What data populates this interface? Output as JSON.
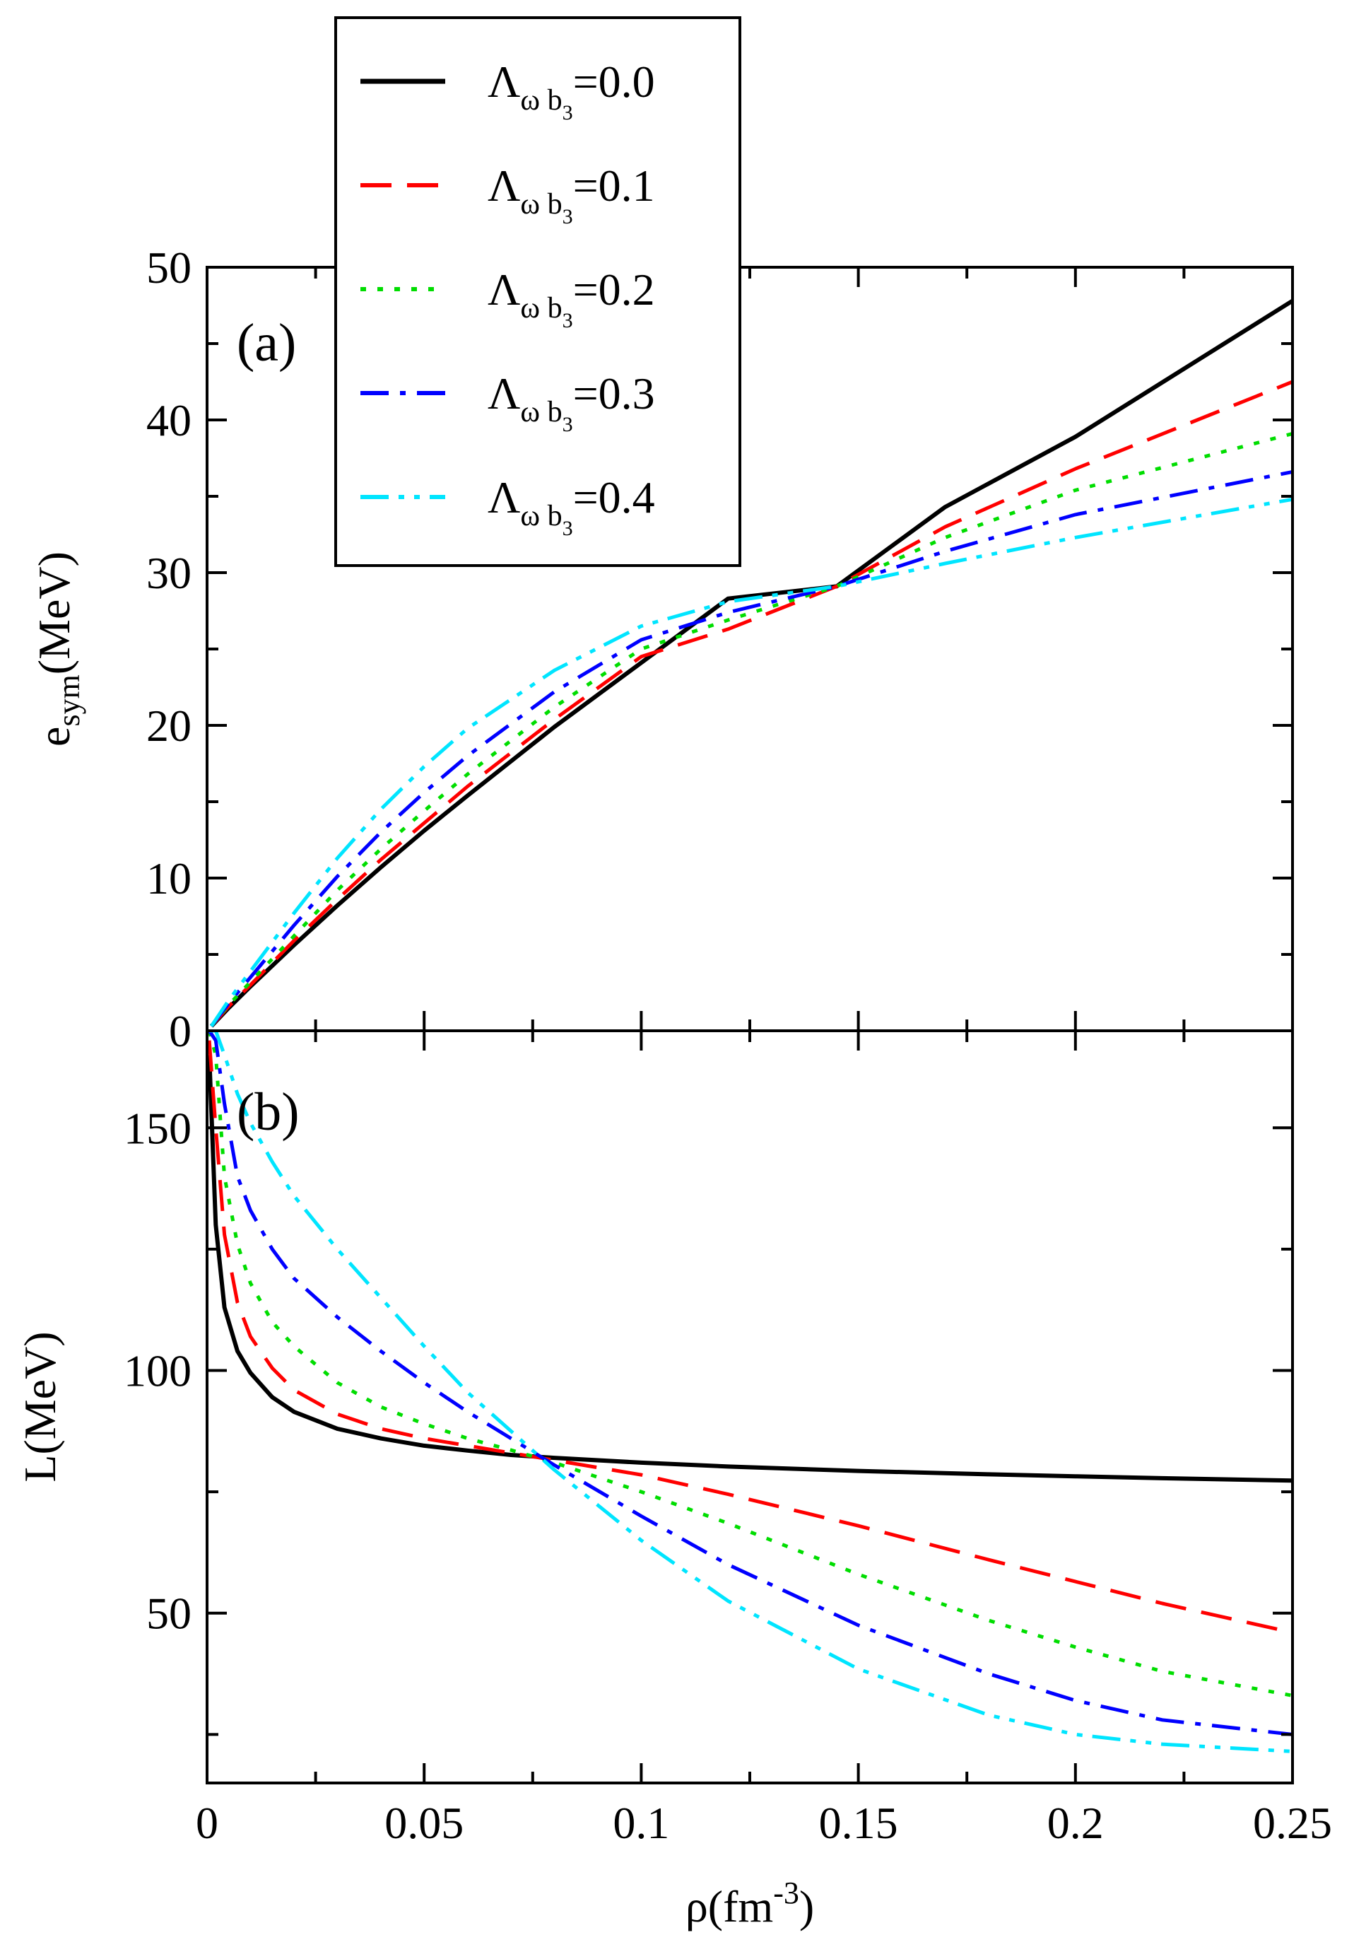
{
  "chart_data": [
    {
      "type": "line",
      "panel_label": "(a)",
      "ylabel_main": "e",
      "ylabel_sub": "sym",
      "ylabel_unit": "(MeV)",
      "xlim": [
        0,
        0.25
      ],
      "ylim": [
        0,
        50
      ],
      "yticks": [
        0,
        10,
        20,
        30,
        40,
        50
      ],
      "ytick_labels": [
        "0",
        "10",
        "20",
        "30",
        "40",
        "50"
      ],
      "x": [
        0.001,
        0.005,
        0.01,
        0.02,
        0.03,
        0.04,
        0.05,
        0.06,
        0.08,
        0.1,
        0.12,
        0.145,
        0.17,
        0.2,
        0.25
      ],
      "series": [
        {
          "name": "Λωb3=0.0",
          "color": "#000000",
          "dash": "solid",
          "values": [
            0.3,
            1.5,
            2.9,
            5.6,
            8.2,
            10.7,
            13.1,
            15.4,
            19.9,
            24.1,
            28.3,
            29.1,
            34.3,
            38.9,
            47.8
          ]
        },
        {
          "name": "Λωb3=0.1",
          "color": "#ff0000",
          "dash": "dashed",
          "values": [
            0.3,
            1.6,
            3.0,
            5.9,
            8.6,
            11.2,
            13.6,
            16.0,
            20.4,
            24.5,
            26.3,
            29.1,
            33.0,
            36.8,
            42.5
          ]
        },
        {
          "name": "Λωb3=0.2",
          "color": "#00dd00",
          "dash": "dotted",
          "values": [
            0.3,
            1.7,
            3.2,
            6.2,
            9.2,
            11.9,
            14.4,
            16.8,
            21.2,
            25.0,
            26.9,
            29.1,
            32.3,
            35.4,
            39.1
          ]
        },
        {
          "name": "Λωb3=0.3",
          "color": "#0000ff",
          "dash": "dashdot",
          "values": [
            0.3,
            1.8,
            3.5,
            6.9,
            10.1,
            13.0,
            15.6,
            18.0,
            22.2,
            25.6,
            27.4,
            29.1,
            31.4,
            33.8,
            36.6
          ]
        },
        {
          "name": "Λωb3=0.4",
          "color": "#00e5ff",
          "dash": "dashdotdot",
          "values": [
            0.3,
            2.0,
            3.9,
            7.7,
            11.3,
            14.5,
            17.3,
            19.8,
            23.6,
            26.5,
            28.1,
            29.1,
            30.6,
            32.3,
            34.8
          ]
        }
      ]
    },
    {
      "type": "line",
      "panel_label": "(b)",
      "ylabel": "L(MeV)",
      "xlabel_main": "ρ(fm",
      "xlabel_sup": "-3",
      "xlabel_close": ")",
      "xlim": [
        0,
        0.25
      ],
      "ylim": [
        15,
        170
      ],
      "yticks": [
        50,
        100,
        150
      ],
      "ytick_labels": [
        "50",
        "100",
        "150"
      ],
      "xticks": [
        0,
        0.05,
        0.1,
        0.15,
        0.2,
        0.25
      ],
      "xtick_labels": [
        "0",
        "0.05",
        "0.1",
        "0.15",
        "0.2",
        "0.25"
      ],
      "x": [
        0.0005,
        0.002,
        0.004,
        0.007,
        0.01,
        0.015,
        0.02,
        0.03,
        0.04,
        0.05,
        0.06,
        0.07,
        0.08,
        0.1,
        0.12,
        0.15,
        0.18,
        0.2,
        0.22,
        0.25
      ],
      "series": [
        {
          "name": "Λωb3=0.0",
          "color": "#000000",
          "dash": "solid",
          "values": [
            165,
            130,
            113,
            104,
            99.5,
            94.5,
            91.5,
            88,
            86,
            84.5,
            83.5,
            82.6,
            82,
            81,
            80.2,
            79.3,
            78.6,
            78.2,
            77.8,
            77.3
          ]
        },
        {
          "name": "Λωb3=0.1",
          "color": "#ff0000",
          "dash": "dashed",
          "values": [
            168,
            150,
            128,
            114,
            107,
            100.5,
            96,
            91,
            88,
            86,
            84.5,
            83,
            81.5,
            78.5,
            74.5,
            68,
            61,
            56.5,
            52,
            46
          ]
        },
        {
          "name": "Λωb3=0.2",
          "color": "#00dd00",
          "dash": "dotted",
          "values": [
            170,
            165,
            140,
            126,
            118,
            110,
            105,
            97.5,
            92.5,
            89,
            86,
            83.6,
            81,
            75,
            68.5,
            58,
            48.5,
            43,
            38,
            33
          ]
        },
        {
          "name": "Λωb3=0.3",
          "color": "#0000ff",
          "dash": "dashdot",
          "values": [
            170,
            168,
            155,
            140,
            133,
            125,
            119,
            111,
            104,
            97.5,
            91.5,
            86,
            80.5,
            70,
            60,
            47.5,
            37.5,
            32,
            28,
            25
          ]
        },
        {
          "name": "Λωb3=0.4",
          "color": "#00e5ff",
          "dash": "dashdotdot",
          "values": [
            170,
            170,
            165,
            157,
            151,
            143,
            136,
            125,
            115,
            105,
            95.5,
            87.5,
            79.5,
            65,
            52.5,
            38.5,
            29,
            25,
            23,
            21.5
          ]
        }
      ]
    }
  ],
  "legend": {
    "symbol": "Λ",
    "sub_omega": "ω",
    "sub_b": "b",
    "sub_three": "3",
    "entries": [
      "=0.0",
      "=0.1",
      "=0.2",
      "=0.3",
      "=0.4"
    ],
    "colors": [
      "#000000",
      "#ff0000",
      "#00dd00",
      "#0000ff",
      "#00e5ff"
    ]
  }
}
